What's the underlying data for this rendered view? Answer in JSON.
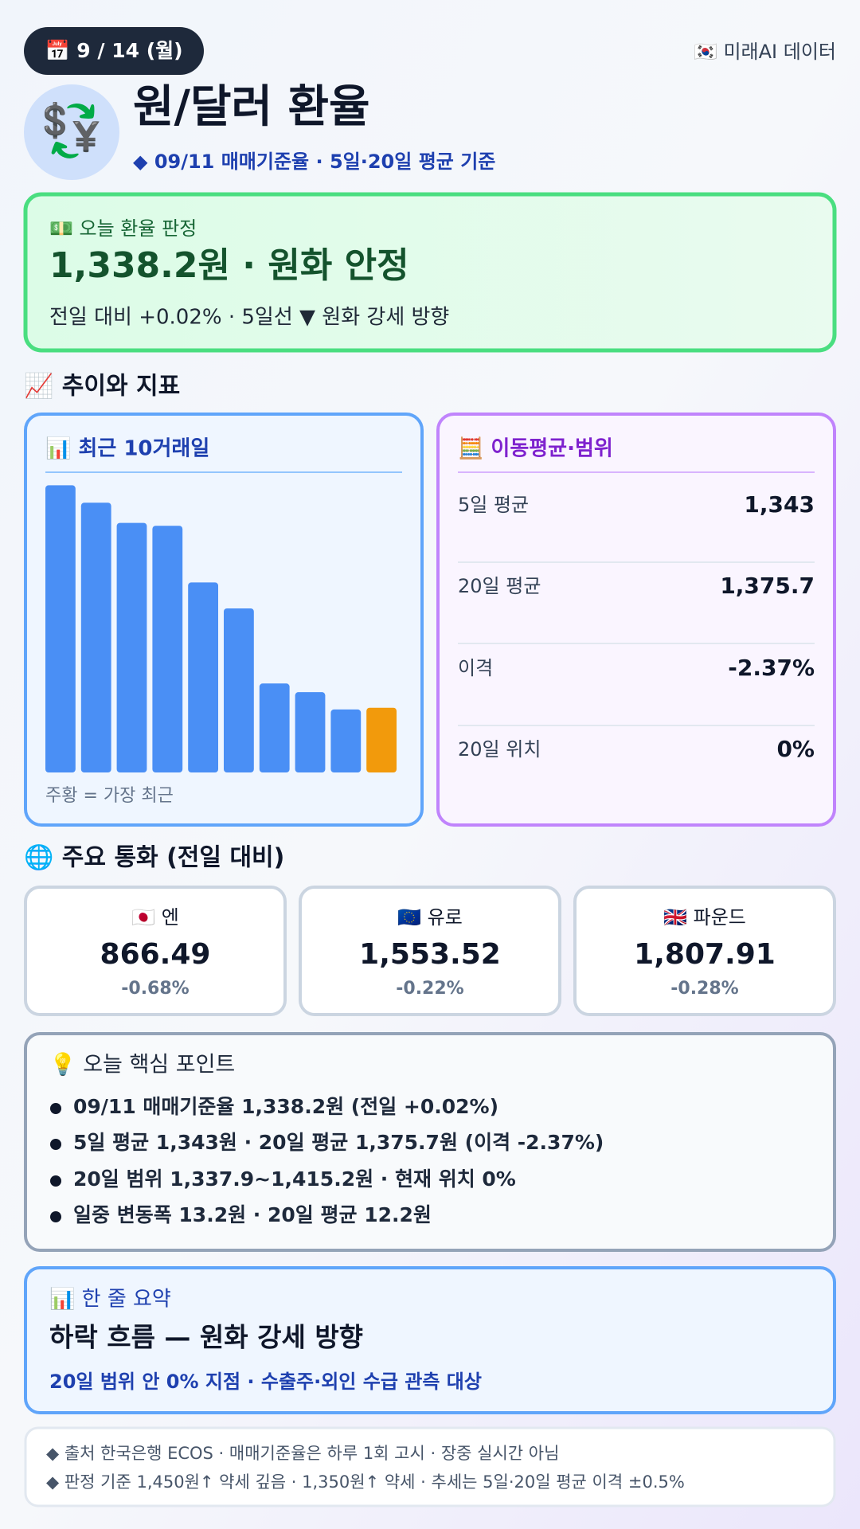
{
  "header": {
    "date": "📅 9 / 14 (월)",
    "source": "🇰🇷 미래AI 데이터",
    "icon": "💱",
    "title": "원/달러 환율",
    "subtitle": "◆ 09/11 매매기준율 · 5일·20일 평균 기준"
  },
  "verdict": {
    "label": "💵 오늘 환율 판정",
    "headline": "1,338.2원 · 원화 안정",
    "detail": "전일 대비 +0.02% · 5일선 ▼ 원화 강세 방향"
  },
  "section_trend": "📈 추이와 지표",
  "chart_data": {
    "type": "bar",
    "title": "📊 최근 10거래일",
    "values": [
      1376.7,
      1373.7,
      1370.2,
      1369.7,
      1359.9,
      1355.4,
      1342.4,
      1340.9,
      1337.9,
      1338.2
    ],
    "color": "#4a8ff5",
    "highlight_color": "#f29a0c",
    "ylim": [
      1327,
      1378
    ],
    "caption": "주황 = 가장 최근"
  },
  "moving_avg": {
    "title": "🧮 이동평균·범위",
    "rows": [
      [
        "5일 평균",
        "1,343"
      ],
      [
        "20일 평균",
        "1,375.7"
      ],
      [
        "이격",
        "-2.37%"
      ],
      [
        "20일 위치",
        "0%"
      ]
    ]
  },
  "section_currencies": "🌐 주요 통화 (전일 대비)",
  "currencies": [
    {
      "name": "🇯🇵 엔",
      "value": "866.49",
      "change": "-0.68%"
    },
    {
      "name": "🇪🇺 유로",
      "value": "1,553.52",
      "change": "-0.22%"
    },
    {
      "name": "🇬🇧 파운드",
      "value": "1,807.91",
      "change": "-0.28%"
    }
  ],
  "points": {
    "title": "💡 오늘 핵심 포인트",
    "items": [
      "09/11 매매기준율 1,338.2원 (전일 +0.02%)",
      "5일 평균 1,343원 · 20일 평균 1,375.7원 (이격 -2.37%)",
      "20일 범위 1,337.9~1,415.2원 · 현재 위치 0%",
      "일중 변동폭 13.2원 · 20일 평균 12.2원"
    ]
  },
  "summary": {
    "title": "📊 한 줄 요약",
    "headline": "하락 흐름 — 원화 강세 방향",
    "detail": "20일 범위 안 0% 지점 · 수출주·외인 수급 관측 대상"
  },
  "footer": [
    "◆ 출처 한국은행 ECOS · 매매기준율은 하루 1회 고시 · 장중 실시간 아님",
    "◆ 판정 기준 1,450원↑ 약세 깊음 · 1,350원↑ 약세 · 추세는 5일·20일 평균 이격 ±0.5%"
  ]
}
